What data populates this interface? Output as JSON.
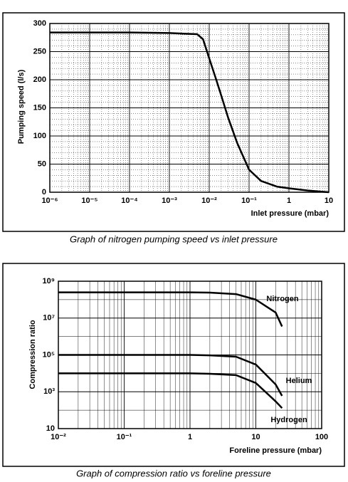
{
  "chart_data": [
    {
      "type": "line",
      "title": null,
      "x_label": "Inlet pressure (mbar)",
      "y_label": "Pumping speed (l/s)",
      "caption": "Graph of nitrogen pumping speed vs inlet pressure",
      "xscale": "log",
      "grid": true,
      "minor_grid": "dotted",
      "color": "#000000",
      "x": [
        1e-06,
        1e-05,
        0.0001,
        0.001,
        0.005,
        0.007,
        0.01,
        0.015,
        0.02,
        0.03,
        0.05,
        0.1,
        0.2,
        0.5,
        1,
        3,
        10
      ],
      "values": [
        284,
        284,
        284,
        283,
        281,
        272,
        238,
        200,
        172,
        132,
        88,
        40,
        20,
        10,
        7,
        3,
        0
      ],
      "xlim": [
        1e-06,
        10
      ],
      "xticks": [
        {
          "value": 1e-06,
          "label": "10⁻⁶"
        },
        {
          "value": 1e-05,
          "label": "10⁻⁵"
        },
        {
          "value": 0.0001,
          "label": "10⁻⁴"
        },
        {
          "value": 0.001,
          "label": "10⁻³"
        },
        {
          "value": 0.01,
          "label": "10⁻²"
        },
        {
          "value": 0.1,
          "label": "10⁻¹"
        },
        1,
        10
      ],
      "ylim": [
        0,
        300
      ],
      "yticks": [
        0,
        50,
        100,
        150,
        200,
        250,
        300
      ]
    },
    {
      "type": "line",
      "x_label": "Foreline pressure (mbar)",
      "y_label": "Compression ratio",
      "caption": "Graph of compression ratio vs foreline pressure",
      "xscale": "log",
      "yscale": "log",
      "grid": true,
      "minor_grid": "solid",
      "x": [
        0.01,
        1,
        2,
        5,
        10,
        20,
        25
      ],
      "series": [
        {
          "name": "Nitrogen",
          "color": "#000000",
          "values": [
            250000000,
            250000000,
            240000000,
            200000000,
            100000000,
            20000000,
            3500000
          ]
        },
        {
          "name": "Helium",
          "color": "#000000",
          "values": [
            100000,
            100000,
            95000,
            80000,
            30000,
            2500,
            600
          ]
        },
        {
          "name": "Hydrogen",
          "color": "#000000",
          "values": [
            10000,
            10000,
            9500,
            8000,
            3000,
            300,
            130
          ]
        }
      ],
      "xlim": [
        0.01,
        100
      ],
      "xticks": [
        {
          "value": 0.01,
          "label": "10⁻²"
        },
        {
          "value": 0.1,
          "label": "10⁻¹"
        },
        1,
        10,
        100
      ],
      "ylim": [
        10,
        1000000000
      ],
      "yticks": [
        10,
        {
          "value": 1000,
          "label": "10³"
        },
        {
          "value": 100000,
          "label": "10⁵"
        },
        {
          "value": 10000000,
          "label": "10⁷"
        },
        {
          "value": 1000000000,
          "label": "10⁹"
        }
      ]
    }
  ]
}
